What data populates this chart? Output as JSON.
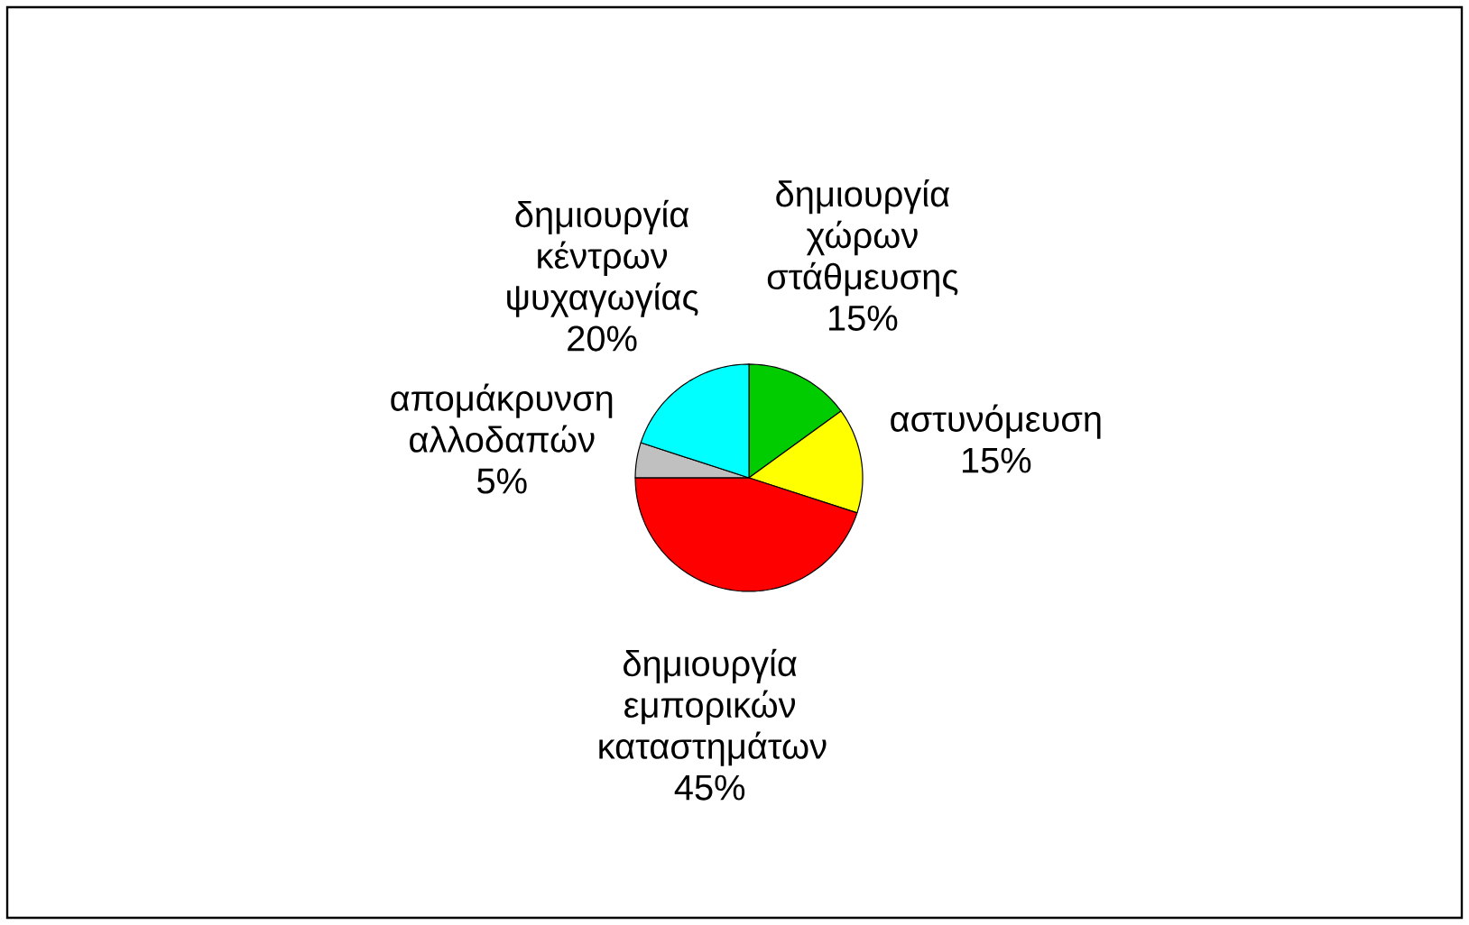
{
  "chart_data": {
    "type": "pie",
    "categories": [
      "δημιουργία χώρων στάθμευσης",
      "αστυνόμευση",
      "δημιουργία εμπορικών καταστημάτων",
      "απομάκρυνση αλλοδαπών",
      "δημιουργία κέντρων ψυχαγωγίας"
    ],
    "values": [
      15,
      15,
      45,
      5,
      20
    ],
    "value_labels": [
      "15%",
      "15%",
      "45%",
      "5%",
      "20%"
    ],
    "colors": [
      "#00cc00",
      "#ffff00",
      "#ff0000",
      "#c0c0c0",
      "#00ffff"
    ]
  }
}
